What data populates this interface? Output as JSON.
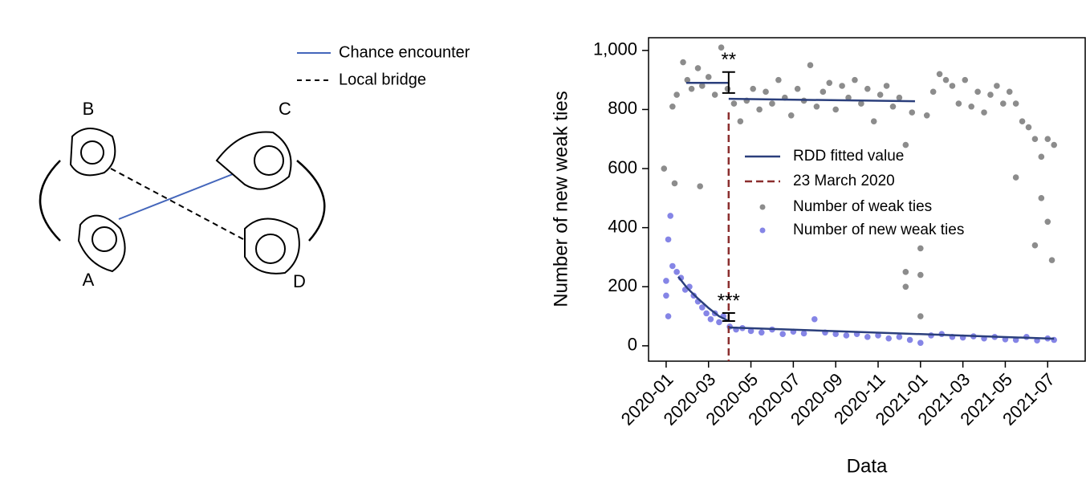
{
  "diagram": {
    "legend": [
      {
        "label": "Chance encounter",
        "color": "#4466bb"
      },
      {
        "label": "Local bridge",
        "color": "#000000"
      }
    ],
    "nodes": [
      {
        "label": "A"
      },
      {
        "label": "B"
      },
      {
        "label": "C"
      },
      {
        "label": "D"
      }
    ]
  },
  "chart_data": {
    "type": "scatter",
    "xlabel": "Data",
    "ylabel": "Number of new weak ties",
    "xlim": [
      -0.83,
      19.77
    ],
    "ylim": [
      -52,
      1043
    ],
    "xticks": [
      {
        "value": 0,
        "label": "2020-01"
      },
      {
        "value": 2,
        "label": "2020-03"
      },
      {
        "value": 4,
        "label": "2020-05"
      },
      {
        "value": 6,
        "label": "2020-07"
      },
      {
        "value": 8,
        "label": "2020-09"
      },
      {
        "value": 10,
        "label": "2020-11"
      },
      {
        "value": 12,
        "label": "2021-01"
      },
      {
        "value": 14,
        "label": "2021-03"
      },
      {
        "value": 16,
        "label": "2021-05"
      },
      {
        "value": 18,
        "label": "2021-07"
      }
    ],
    "yticks": [
      0,
      200,
      400,
      600,
      800,
      {
        "value": 1000,
        "label": "1,000"
      }
    ],
    "series": [
      {
        "name": "Number of weak ties",
        "color": "#8c8c8c",
        "x": [
          -0.1,
          0.3,
          0.5,
          0.8,
          1.0,
          1.2,
          1.5,
          1.7,
          2.0,
          2.3,
          2.6,
          2.9,
          3.2,
          3.5,
          3.8,
          4.1,
          4.4,
          4.7,
          5.0,
          5.3,
          5.6,
          5.9,
          6.2,
          6.5,
          6.8,
          7.1,
          7.4,
          7.7,
          8.0,
          8.3,
          8.6,
          8.9,
          9.2,
          9.5,
          9.8,
          10.1,
          10.4,
          10.7,
          11.0,
          11.3,
          11.6,
          12.3,
          12.6,
          12.9,
          13.2,
          13.5,
          13.8,
          14.1,
          14.4,
          14.7,
          15.0,
          15.3,
          15.6,
          15.9,
          16.2,
          16.5,
          16.8,
          17.1,
          17.4,
          17.7,
          18.0,
          18.3,
          1.6,
          11.3,
          11.3,
          12.0,
          12.0,
          12.0,
          16.5,
          17.4,
          17.7,
          18.0,
          18.2,
          0.4
        ],
        "values": [
          600,
          810,
          850,
          960,
          900,
          870,
          940,
          880,
          910,
          850,
          1010,
          870,
          820,
          760,
          830,
          870,
          800,
          860,
          820,
          900,
          840,
          780,
          870,
          830,
          950,
          810,
          860,
          890,
          800,
          880,
          840,
          900,
          820,
          870,
          760,
          850,
          880,
          810,
          840,
          680,
          790,
          780,
          860,
          920,
          900,
          880,
          820,
          900,
          810,
          860,
          790,
          850,
          880,
          820,
          860,
          820,
          760,
          740,
          700,
          640,
          700,
          680,
          540,
          250,
          200,
          330,
          240,
          100,
          570,
          340,
          500,
          420,
          290,
          550
        ]
      },
      {
        "name": "Number of new weak ties",
        "color": "#8585e6",
        "x": [
          0,
          0.1,
          0.2,
          0.3,
          0.5,
          0.7,
          0.9,
          1.1,
          1.3,
          1.5,
          1.7,
          1.9,
          2.1,
          2.3,
          2.5,
          2.7,
          3.0,
          3.3,
          3.6,
          4,
          4.5,
          5,
          5.5,
          6,
          6.5,
          7,
          7.5,
          8,
          8.5,
          9,
          9.5,
          10,
          10.5,
          11,
          11.5,
          12,
          12.5,
          13,
          13.5,
          14,
          14.5,
          15,
          15.5,
          16,
          16.5,
          17,
          17.5,
          18,
          18.3,
          0.1,
          0.0
        ],
        "values": [
          220,
          360,
          440,
          270,
          250,
          230,
          190,
          200,
          170,
          150,
          130,
          110,
          90,
          110,
          80,
          100,
          65,
          55,
          60,
          50,
          45,
          55,
          40,
          48,
          42,
          90,
          45,
          40,
          35,
          40,
          30,
          35,
          25,
          30,
          20,
          10,
          35,
          40,
          30,
          28,
          32,
          25,
          30,
          22,
          20,
          30,
          18,
          25,
          20,
          100,
          170
        ]
      }
    ],
    "fit": {
      "name": "RDD fitted value",
      "color": "#2b3f7c",
      "segments": [
        {
          "x": [
            0.95,
            2.95
          ],
          "values": [
            890,
            890
          ]
        },
        {
          "x": [
            2.95,
            11.74
          ],
          "values": [
            836,
            828
          ]
        },
        {
          "x": [
            0.57,
            1.0,
            1.5,
            2.0,
            2.5,
            2.95
          ],
          "values": [
            234,
            195,
            160,
            128,
            100,
            84
          ]
        },
        {
          "x": [
            2.95,
            18.3
          ],
          "values": [
            62,
            24
          ]
        }
      ]
    },
    "cutoff": {
      "label": "23 March 2020",
      "x": 2.95,
      "color": "#8b2e2e"
    },
    "error_bars": [
      {
        "label": "**",
        "x": 2.95,
        "low": 856,
        "high": 927
      },
      {
        "label": "***",
        "x": 2.95,
        "low": 84,
        "high": 111
      }
    ]
  }
}
